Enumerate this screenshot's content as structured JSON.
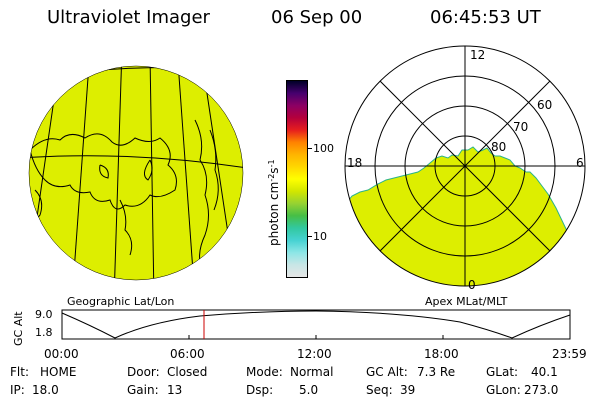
{
  "header": {
    "title": "Ultraviolet Imager",
    "date": "06 Sep 00",
    "time": "06:45:53 UT"
  },
  "colorbar": {
    "unit": "photon cm⁻²s⁻¹",
    "unit_parts": [
      "photon cm",
      "-2",
      "s",
      "-1"
    ],
    "ticks": [
      "100",
      "10"
    ],
    "scale": "log",
    "colors": [
      "#e6e6e6",
      "#c8e6e6",
      "#8ce6e6",
      "#46d2d2",
      "#32c8a0",
      "#46be46",
      "#96d232",
      "#d2e600",
      "#ffff00",
      "#ffd700",
      "#ffb400",
      "#ff8200",
      "#e61e1e",
      "#b4003c",
      "#8c0064",
      "#46006e",
      "#000028"
    ]
  },
  "left_map": {
    "label": "Geographic Lat/Lon",
    "fill_color": "#ddee00"
  },
  "right_map": {
    "label": "Apex MLat/MLT",
    "fill_color": "#ddee00",
    "mlt_labels": {
      "top": "12",
      "left": "18",
      "right": "6",
      "bottom": "0"
    },
    "lat_labels": [
      "60",
      "70",
      "80"
    ]
  },
  "altitude_plot": {
    "ylabel": "GC Alt",
    "yticks": [
      "9.0",
      "1.8"
    ],
    "xticks": [
      "00:00",
      "06:00",
      "12:00",
      "18:00",
      "23:59"
    ],
    "marker_time": "06:45:53",
    "marker_color": "#cc0000"
  },
  "info": {
    "flt_label": "Flt:",
    "flt": "HOME",
    "ip_label": "IP:",
    "ip": "18.0",
    "door_label": "Door:",
    "door": "Closed",
    "gain_label": "Gain:",
    "gain": "13",
    "mode_label": "Mode:",
    "mode": "Normal",
    "dsp_label": "Dsp:",
    "dsp": "5.0",
    "gcalt_label": "GC Alt:",
    "gcalt": "7.3 Re",
    "seq_label": "Seq:",
    "seq": "39",
    "glat_label": "GLat:",
    "glat": "40.1",
    "glon_label": "GLon:",
    "glon": "273.0"
  }
}
